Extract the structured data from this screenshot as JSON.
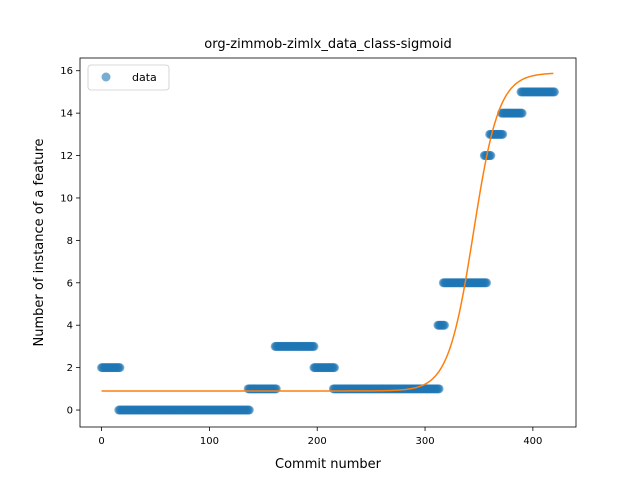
{
  "chart_data": {
    "type": "scatter",
    "title": "org-zimmob-zimlx_data_class-sigmoid",
    "xlabel": "Commit number",
    "ylabel": "Number of instance of a feature",
    "xlim": [
      -20,
      440
    ],
    "ylim": [
      -0.8,
      16.6
    ],
    "xticks": [
      0,
      100,
      200,
      300,
      400
    ],
    "yticks": [
      0,
      2,
      4,
      6,
      8,
      10,
      12,
      14,
      16
    ],
    "grid": false,
    "legend": {
      "position": "top-left",
      "entries": [
        "data"
      ]
    },
    "colors": {
      "data": "#1f77b4",
      "fit": "#ff7f0e"
    },
    "series": [
      {
        "name": "data",
        "kind": "scatter",
        "segments": [
          {
            "x_start": 0,
            "x_end": 17,
            "y": 2
          },
          {
            "x_start": 16,
            "x_end": 137,
            "y": 0
          },
          {
            "x_start": 136,
            "x_end": 162,
            "y": 1
          },
          {
            "x_start": 161,
            "x_end": 197,
            "y": 3
          },
          {
            "x_start": 197,
            "x_end": 216,
            "y": 2
          },
          {
            "x_start": 215,
            "x_end": 313,
            "y": 1
          },
          {
            "x_start": 312,
            "x_end": 318,
            "y": 4
          },
          {
            "x_start": 317,
            "x_end": 357,
            "y": 6
          },
          {
            "x_start": 355,
            "x_end": 361,
            "y": 12
          },
          {
            "x_start": 360,
            "x_end": 372,
            "y": 13
          },
          {
            "x_start": 371,
            "x_end": 390,
            "y": 14
          },
          {
            "x_start": 389,
            "x_end": 420,
            "y": 15
          }
        ]
      },
      {
        "kind": "line",
        "sigmoid": {
          "lower": 0.9,
          "upper": 15.9,
          "midpoint": 345,
          "steepness": 0.085,
          "x_start": 0,
          "x_end": 419
        }
      }
    ]
  }
}
